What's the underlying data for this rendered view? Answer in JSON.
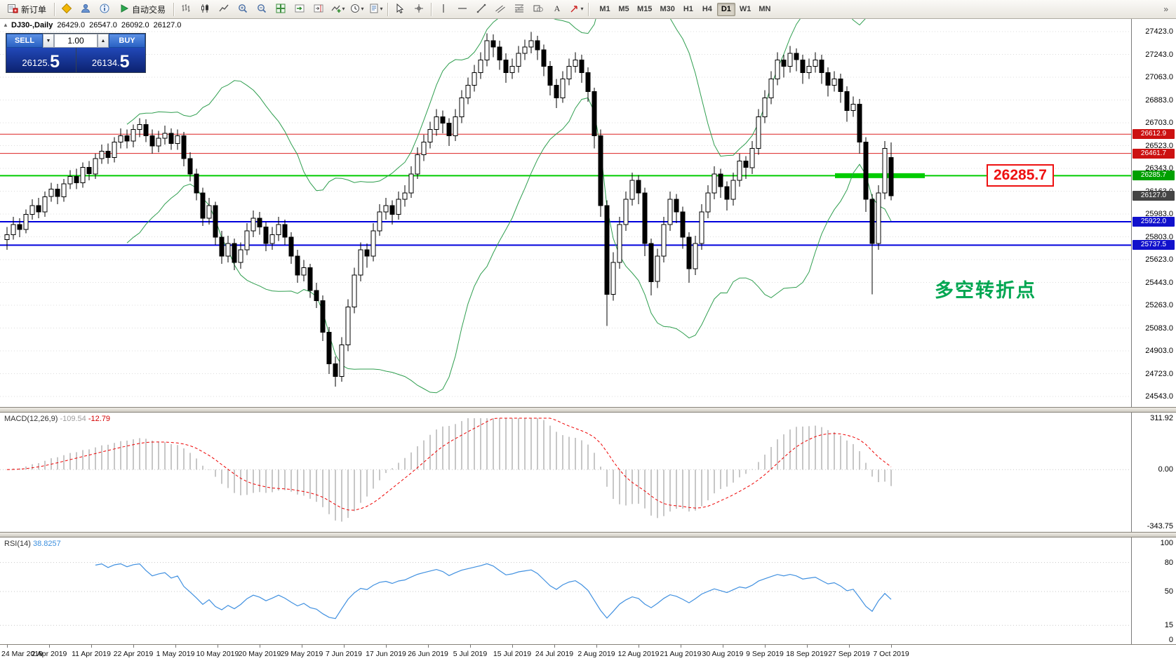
{
  "toolbar": {
    "new_order_label": "新订单",
    "autotrading_label": "自动交易",
    "timeframes": [
      "M1",
      "M5",
      "M15",
      "M30",
      "H1",
      "H4",
      "D1",
      "W1",
      "MN"
    ],
    "active_timeframe": "D1",
    "overflow_glyph": "»"
  },
  "chart": {
    "header": {
      "symbol_period": "DJ30-,Daily",
      "open": "26429.0",
      "high": "26547.0",
      "low": "26092.0",
      "close": "26127.0"
    },
    "price_axis": {
      "step": 180,
      "labels": [
        "27423.0",
        "27243.0",
        "27063.0",
        "26883.0",
        "26703.0",
        "26523.0",
        "26343.0",
        "26163.0",
        "25983.0",
        "25803.0",
        "25623.0",
        "25443.0",
        "25263.0",
        "25083.0",
        "24903.0",
        "24723.0",
        "24543.0"
      ]
    },
    "levels": [
      {
        "value": 26612.9,
        "color": "#dd2222",
        "width": 1,
        "highlight": false
      },
      {
        "value": 26461.7,
        "color": "#dd2222",
        "width": 1,
        "highlight": false
      },
      {
        "value": 26285.7,
        "color": "#00cc00",
        "width": 2,
        "highlight": true
      },
      {
        "value": 25922.0,
        "color": "#0000dd",
        "width": 2,
        "highlight": false
      },
      {
        "value": 25737.5,
        "color": "#0000dd",
        "width": 2,
        "highlight": false
      }
    ],
    "axis_tags": [
      {
        "label": "26612.9",
        "value": 26612.9,
        "color": "#cc1111"
      },
      {
        "label": "26461.7",
        "value": 26461.7,
        "color": "#cc1111"
      },
      {
        "label": "26285.7",
        "value": 26285.7,
        "color": "#00a000"
      },
      {
        "label": "26127.0",
        "value": 26127.0,
        "color": "#444444"
      },
      {
        "label": "25922.0",
        "value": 25922.0,
        "color": "#1111cc"
      },
      {
        "label": "25737.5",
        "value": 25737.5,
        "color": "#1111cc"
      }
    ],
    "callout": "26285.7",
    "annotation": "多空转折点",
    "dates": [
      "24 Mar 2019",
      "2 Apr 2019",
      "11 Apr 2019",
      "22 Apr 2019",
      "1 May 2019",
      "10 May 2019",
      "20 May 2019",
      "29 May 2019",
      "7 Jun 2019",
      "17 Jun 2019",
      "26 Jun 2019",
      "5 Jul 2019",
      "15 Jul 2019",
      "24 Jul 2019",
      "2 Aug 2019",
      "12 Aug 2019",
      "21 Aug 2019",
      "30 Aug 2019",
      "9 Sep 2019",
      "18 Sep 2019",
      "27 Sep 2019",
      "7 Oct 2019"
    ],
    "candles": [
      [
        25780,
        25880,
        25700,
        25820
      ],
      [
        25820,
        25960,
        25780,
        25900
      ],
      [
        25900,
        25950,
        25800,
        25860
      ],
      [
        25860,
        26020,
        25830,
        25980
      ],
      [
        25980,
        26100,
        25940,
        26050
      ],
      [
        26050,
        26110,
        25950,
        26000
      ],
      [
        26000,
        26160,
        25960,
        26120
      ],
      [
        26120,
        26230,
        26080,
        26180
      ],
      [
        26180,
        26220,
        26060,
        26120
      ],
      [
        26120,
        26260,
        26080,
        26220
      ],
      [
        26220,
        26330,
        26180,
        26280
      ],
      [
        26280,
        26340,
        26180,
        26230
      ],
      [
        26230,
        26390,
        26190,
        26350
      ],
      [
        26350,
        26400,
        26250,
        26300
      ],
      [
        26300,
        26460,
        26260,
        26420
      ],
      [
        26420,
        26530,
        26380,
        26480
      ],
      [
        26480,
        26540,
        26380,
        26430
      ],
      [
        26430,
        26590,
        26390,
        26550
      ],
      [
        26550,
        26660,
        26500,
        26600
      ],
      [
        26600,
        26650,
        26500,
        26560
      ],
      [
        26560,
        26690,
        26510,
        26650
      ],
      [
        26650,
        26740,
        26590,
        26690
      ],
      [
        26690,
        26730,
        26550,
        26600
      ],
      [
        26600,
        26650,
        26460,
        26520
      ],
      [
        26520,
        26640,
        26470,
        26580
      ],
      [
        26580,
        26680,
        26530,
        26620
      ],
      [
        26620,
        26660,
        26490,
        26540
      ],
      [
        26540,
        26650,
        26490,
        26600
      ],
      [
        26600,
        26630,
        26360,
        26420
      ],
      [
        26420,
        26470,
        26240,
        26300
      ],
      [
        26300,
        26340,
        26090,
        26150
      ],
      [
        26150,
        26190,
        25890,
        25950
      ],
      [
        25950,
        26110,
        25900,
        26050
      ],
      [
        26050,
        26080,
        25740,
        25800
      ],
      [
        25800,
        25850,
        25590,
        25650
      ],
      [
        25650,
        25810,
        25600,
        25750
      ],
      [
        25750,
        25790,
        25540,
        25600
      ],
      [
        25600,
        25760,
        25550,
        25700
      ],
      [
        25700,
        25910,
        25660,
        25850
      ],
      [
        25850,
        26010,
        25800,
        25950
      ],
      [
        25950,
        26000,
        25820,
        25880
      ],
      [
        25880,
        25920,
        25690,
        25750
      ],
      [
        25750,
        25880,
        25700,
        25820
      ],
      [
        25820,
        25960,
        25770,
        25900
      ],
      [
        25900,
        25940,
        25740,
        25800
      ],
      [
        25800,
        25840,
        25590,
        25650
      ],
      [
        25650,
        25700,
        25440,
        25500
      ],
      [
        25500,
        25620,
        25450,
        25560
      ],
      [
        25560,
        25590,
        25320,
        25380
      ],
      [
        25380,
        25440,
        25240,
        25300
      ],
      [
        25300,
        25340,
        24980,
        25050
      ],
      [
        25050,
        25090,
        24720,
        24800
      ],
      [
        24800,
        24860,
        24620,
        24700
      ],
      [
        24700,
        25010,
        24660,
        24950
      ],
      [
        24950,
        25310,
        24900,
        25250
      ],
      [
        25250,
        25560,
        25200,
        25500
      ],
      [
        25500,
        25760,
        25450,
        25700
      ],
      [
        25700,
        25750,
        25560,
        25650
      ],
      [
        25650,
        25910,
        25610,
        25850
      ],
      [
        25850,
        26060,
        25810,
        26000
      ],
      [
        26000,
        26110,
        25940,
        26050
      ],
      [
        26050,
        26090,
        25900,
        25980
      ],
      [
        25980,
        26160,
        25940,
        26100
      ],
      [
        26100,
        26210,
        26040,
        26150
      ],
      [
        26150,
        26360,
        26110,
        26300
      ],
      [
        26300,
        26510,
        26260,
        26450
      ],
      [
        26450,
        26610,
        26400,
        26550
      ],
      [
        26550,
        26710,
        26500,
        26650
      ],
      [
        26650,
        26810,
        26600,
        26750
      ],
      [
        26750,
        26800,
        26620,
        26700
      ],
      [
        26700,
        26740,
        26520,
        26600
      ],
      [
        26600,
        26810,
        26560,
        26750
      ],
      [
        26750,
        26960,
        26700,
        26900
      ],
      [
        26900,
        27060,
        26850,
        27000
      ],
      [
        27000,
        27160,
        26950,
        27100
      ],
      [
        27100,
        27260,
        27050,
        27200
      ],
      [
        27200,
        27410,
        27150,
        27350
      ],
      [
        27350,
        27400,
        27220,
        27300
      ],
      [
        27300,
        27350,
        27120,
        27200
      ],
      [
        27200,
        27250,
        27020,
        27100
      ],
      [
        27100,
        27210,
        27050,
        27150
      ],
      [
        27150,
        27310,
        27100,
        27250
      ],
      [
        27250,
        27360,
        27200,
        27300
      ],
      [
        27300,
        27420,
        27250,
        27350
      ],
      [
        27350,
        27390,
        27200,
        27280
      ],
      [
        27280,
        27320,
        27070,
        27150
      ],
      [
        27150,
        27190,
        26920,
        27000
      ],
      [
        27000,
        27050,
        26820,
        26900
      ],
      [
        26900,
        27110,
        26860,
        27050
      ],
      [
        27050,
        27210,
        27000,
        27150
      ],
      [
        27150,
        27260,
        27100,
        27200
      ],
      [
        27200,
        27240,
        27020,
        27100
      ],
      [
        27100,
        27140,
        26870,
        26950
      ],
      [
        26950,
        26980,
        26500,
        26600
      ],
      [
        26600,
        26650,
        25960,
        26050
      ],
      [
        26050,
        26090,
        25100,
        25350
      ],
      [
        25350,
        25680,
        25300,
        25600
      ],
      [
        25600,
        25960,
        25550,
        25900
      ],
      [
        25900,
        26160,
        25850,
        26100
      ],
      [
        26100,
        26310,
        26050,
        26250
      ],
      [
        26250,
        26290,
        26060,
        26150
      ],
      [
        26150,
        26190,
        25650,
        25750
      ],
      [
        25750,
        25790,
        25340,
        25450
      ],
      [
        25450,
        25710,
        25400,
        25650
      ],
      [
        25650,
        25960,
        25600,
        25900
      ],
      [
        25900,
        26160,
        25850,
        26100
      ],
      [
        26100,
        26140,
        25910,
        26000
      ],
      [
        26000,
        26040,
        25710,
        25800
      ],
      [
        25800,
        25840,
        25440,
        25550
      ],
      [
        25550,
        25810,
        25500,
        25750
      ],
      [
        25750,
        26060,
        25700,
        26000
      ],
      [
        26000,
        26210,
        25950,
        26150
      ],
      [
        26150,
        26360,
        26100,
        26300
      ],
      [
        26300,
        26340,
        26110,
        26200
      ],
      [
        26200,
        26240,
        26010,
        26100
      ],
      [
        26100,
        26310,
        26050,
        26250
      ],
      [
        26250,
        26460,
        26200,
        26400
      ],
      [
        26400,
        26440,
        26260,
        26350
      ],
      [
        26350,
        26560,
        26300,
        26500
      ],
      [
        26500,
        26810,
        26450,
        26750
      ],
      [
        26750,
        26960,
        26700,
        26900
      ],
      [
        26900,
        27110,
        26850,
        27050
      ],
      [
        27050,
        27260,
        27000,
        27200
      ],
      [
        27200,
        27240,
        27060,
        27150
      ],
      [
        27150,
        27310,
        27100,
        27250
      ],
      [
        27250,
        27290,
        27110,
        27200
      ],
      [
        27200,
        27240,
        27010,
        27100
      ],
      [
        27100,
        27210,
        27050,
        27150
      ],
      [
        27150,
        27260,
        27100,
        27200
      ],
      [
        27200,
        27240,
        27010,
        27100
      ],
      [
        27100,
        27140,
        26910,
        27000
      ],
      [
        27000,
        27110,
        26950,
        27050
      ],
      [
        27050,
        27090,
        26860,
        26950
      ],
      [
        26950,
        26990,
        26710,
        26800
      ],
      [
        26800,
        26910,
        26750,
        26850
      ],
      [
        26850,
        26890,
        26460,
        26550
      ],
      [
        26550,
        26590,
        26000,
        26100
      ],
      [
        26100,
        26140,
        25350,
        25750
      ],
      [
        25750,
        26210,
        25700,
        26150
      ],
      [
        26150,
        26560,
        26100,
        26500
      ],
      [
        26429,
        26547,
        26092,
        26127
      ]
    ]
  },
  "trade_panel": {
    "sell_label": "SELL",
    "buy_label": "BUY",
    "volume": "1.00",
    "sell_price_main": "26125.",
    "sell_price_big": "5",
    "buy_price_main": "26134.",
    "buy_price_big": "5"
  },
  "macd": {
    "title": "MACD(12,26,9)",
    "value_main": "-109.54",
    "value_signal": "-12.79",
    "axis_labels": [
      "311.92",
      "0.00",
      "-343.75"
    ],
    "axis_values": [
      311.92,
      0,
      -343.75
    ],
    "axis_max": 311.92,
    "axis_min": -343.75,
    "fast": 12,
    "slow": 26,
    "signal": 9
  },
  "rsi": {
    "title": "RSI(14)",
    "value": "38.8257",
    "period": 14,
    "axis_labels": [
      "100",
      "80",
      "50",
      "15",
      "0"
    ],
    "axis_values": [
      100,
      80,
      50,
      15,
      0
    ],
    "levels": [
      80,
      50,
      15
    ]
  },
  "colors": {
    "candle_up": "#ffffff",
    "candle_down": "#000000",
    "candle_outline": "#000000",
    "bollinger": "#2f9e4f",
    "macd_histogram": "#b4b4b4",
    "macd_signal": "#ee0000",
    "rsi_line": "#4090e0",
    "level_red": "#dd2222",
    "level_blue": "#0000dd",
    "level_green": "#00cc00",
    "annotation_green": "#00a651",
    "callout_red": "#ee1111"
  }
}
